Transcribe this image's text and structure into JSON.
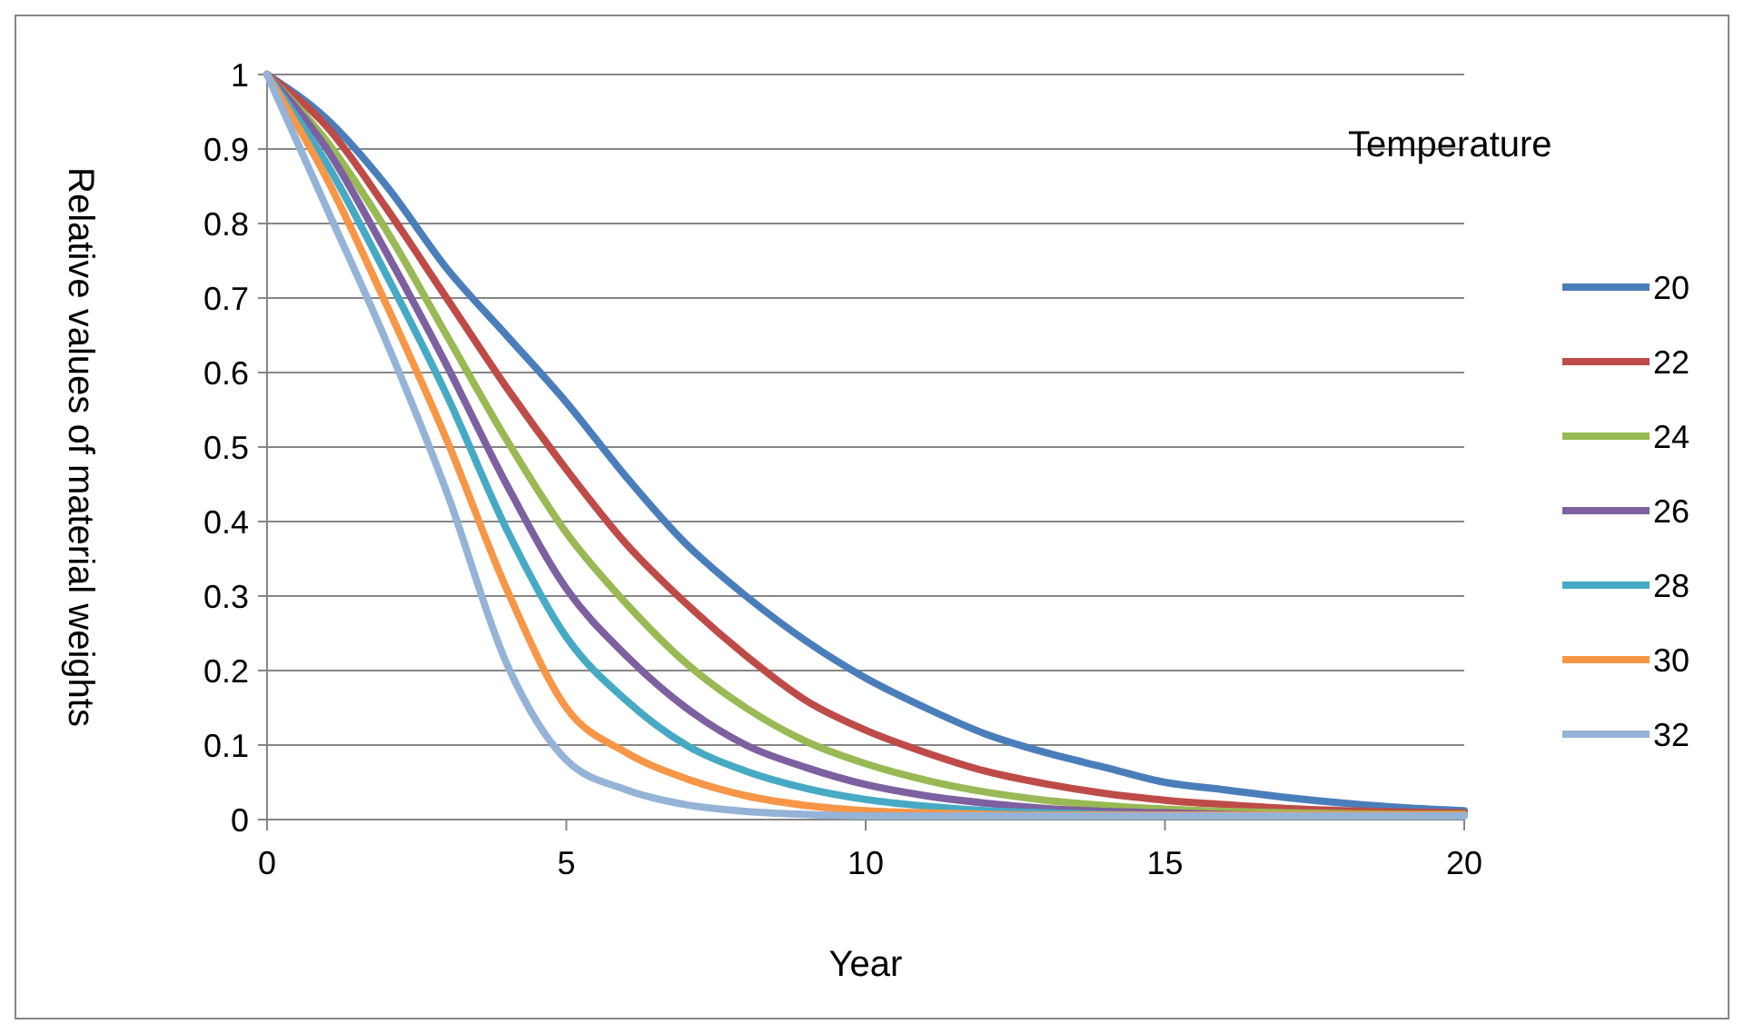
{
  "chart_data": {
    "type": "line",
    "xlabel": "Year",
    "ylabel": "Relative values of material weights",
    "legend_title": "Temperature",
    "legend": "right",
    "grid": "y",
    "marker": "none",
    "line_style": "solid",
    "x": [
      0,
      1,
      2,
      3,
      4,
      5,
      6,
      7,
      8,
      9,
      10,
      11,
      12,
      13,
      14,
      15,
      16,
      17,
      18,
      19,
      20
    ],
    "xlim": [
      0,
      20
    ],
    "xticks": [
      0,
      5,
      10,
      15,
      20
    ],
    "ylim": [
      0,
      1
    ],
    "yticks": [
      0,
      0.1,
      0.2,
      0.3,
      0.4,
      0.5,
      0.6,
      0.7,
      0.8,
      0.9,
      1
    ],
    "series": [
      {
        "name": "20",
        "color": "#4a7ebb",
        "values": [
          1,
          0.94,
          0.85,
          0.74,
          0.65,
          0.56,
          0.46,
          0.37,
          0.3,
          0.24,
          0.19,
          0.15,
          0.115,
          0.09,
          0.07,
          0.05,
          0.04,
          0.03,
          0.022,
          0.016,
          0.012
        ]
      },
      {
        "name": "22",
        "color": "#be4b48",
        "values": [
          1,
          0.93,
          0.82,
          0.7,
          0.58,
          0.47,
          0.37,
          0.29,
          0.22,
          0.16,
          0.12,
          0.09,
          0.065,
          0.048,
          0.035,
          0.026,
          0.02,
          0.015,
          0.012,
          0.01,
          0.009
        ]
      },
      {
        "name": "24",
        "color": "#98b954",
        "values": [
          1,
          0.91,
          0.79,
          0.65,
          0.51,
          0.385,
          0.29,
          0.21,
          0.15,
          0.105,
          0.075,
          0.053,
          0.037,
          0.026,
          0.019,
          0.014,
          0.011,
          0.009,
          0.008,
          0.007,
          0.007
        ]
      },
      {
        "name": "26",
        "color": "#7d60a0",
        "values": [
          1,
          0.9,
          0.76,
          0.61,
          0.45,
          0.31,
          0.22,
          0.15,
          0.1,
          0.07,
          0.047,
          0.032,
          0.022,
          0.015,
          0.011,
          0.009,
          0.007,
          0.006,
          0.006,
          0.006,
          0.006
        ]
      },
      {
        "name": "28",
        "color": "#46aac5",
        "values": [
          1,
          0.88,
          0.73,
          0.57,
          0.39,
          0.245,
          0.16,
          0.1,
          0.065,
          0.042,
          0.027,
          0.018,
          0.012,
          0.009,
          0.007,
          0.006,
          0.006,
          0.006,
          0.006,
          0.006,
          0.006
        ]
      },
      {
        "name": "30",
        "color": "#f79646",
        "values": [
          1,
          0.86,
          0.69,
          0.51,
          0.31,
          0.15,
          0.09,
          0.055,
          0.032,
          0.019,
          0.012,
          0.009,
          0.007,
          0.006,
          0.006,
          0.006,
          0.006,
          0.006,
          0.006,
          0.006,
          0.006
        ]
      },
      {
        "name": "32",
        "color": "#95b3d7",
        "values": [
          1,
          0.82,
          0.64,
          0.44,
          0.21,
          0.08,
          0.04,
          0.02,
          0.011,
          0.007,
          0.005,
          0.005,
          0.005,
          0.005,
          0.005,
          0.005,
          0.005,
          0.005,
          0.005,
          0.005,
          0.005
        ]
      }
    ]
  }
}
